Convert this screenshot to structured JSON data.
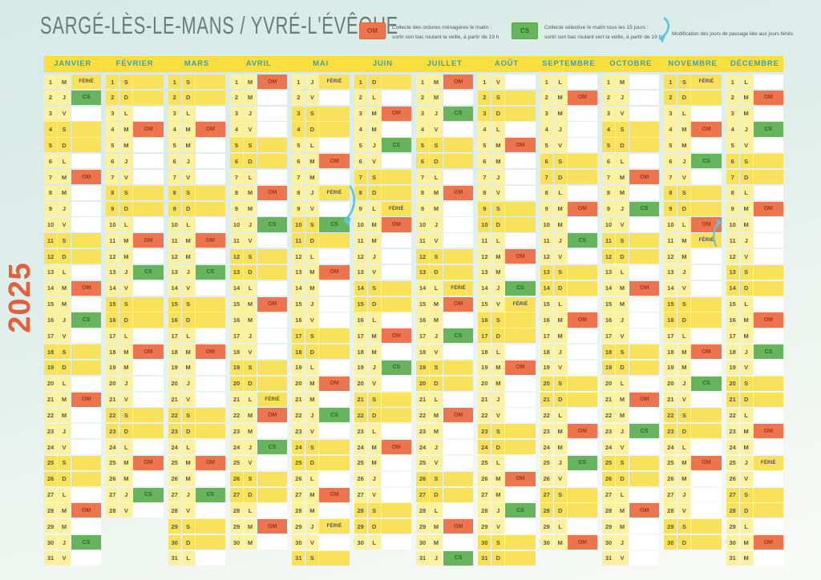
{
  "page_title": "SARGÉ-LÈS-LE-MANS / YVRÉ-L'ÉVÊQUE",
  "year": "2025",
  "holiday_label": "FÉRIÉ",
  "legend": {
    "om": {
      "label": "OM",
      "line1": "Collecte des ordures ménagères le matin :",
      "line2": "sortir son bac roulant la veille, à partir de 19 h"
    },
    "cs": {
      "label": "CS",
      "line1": "Collecte sélective le matin tous les 15 jours :",
      "line2": "sortir son bac roulant vert la veille, à partir de 19 h"
    },
    "note": "Modification des jours de passage liée aux jours fériés"
  },
  "icons": {
    "legend_arrow": "curved-blue-arrow",
    "may_shift_arrow": "curved-blue-arrow-may8-to-may10",
    "nov_shift_arrow": "curved-blue-arrow-nov11-to-nov10"
  },
  "colors": {
    "band_yellow": "#fbdf3f",
    "weekday_cell": "#fcf19e",
    "weekend_cell": "#f8e25c",
    "om_orange": "#ec7550",
    "cs_green": "#68b45e",
    "month_name_teal": "#3d9fb0",
    "year_orange": "#e2603c",
    "arrow_blue": "#5ec4e2",
    "title_gray": "#6b7b77"
  },
  "months": [
    {
      "name": "JANVIER",
      "weekdays": "MJVSDLMMJVSDLMMJVSDLMMJVSDLMMJV",
      "markers": {
        "1": "FERIE",
        "2": "CS",
        "7": "OM",
        "14": "OM",
        "16": "CS",
        "21": "OM",
        "28": "OM",
        "30": "CS"
      }
    },
    {
      "name": "FÉVRIER",
      "weekdays": "SDLMMJVSDLMMJVSDLMMJVSDLMMJV",
      "markers": {
        "4": "OM",
        "11": "OM",
        "13": "CS",
        "18": "OM",
        "25": "OM",
        "27": "CS"
      }
    },
    {
      "name": "MARS",
      "weekdays": "SDLMMJVSDLMMJVSDLMMJVSDLMMJVSDL",
      "markers": {
        "4": "OM",
        "11": "OM",
        "13": "CS",
        "18": "OM",
        "25": "OM",
        "27": "CS"
      }
    },
    {
      "name": "AVRIL",
      "weekdays": "MMJVSDLMMJVSDLMMJVSDLMMJVSDLMM",
      "markers": {
        "1": "OM",
        "8": "OM",
        "10": "CS",
        "15": "OM",
        "21": "FERIE",
        "22": "OM",
        "24": "CS",
        "29": "OM"
      }
    },
    {
      "name": "MAI",
      "weekdays": "JVSDLMMJVSDLMMJVSDLMMJVSDLMMJVS",
      "markers": {
        "1": "FERIE",
        "6": "OM",
        "8": "FERIE",
        "10": "CS",
        "13": "OM",
        "20": "OM",
        "22": "CS",
        "27": "OM",
        "29": "FERIE"
      }
    },
    {
      "name": "JUIN",
      "weekdays": "DLMMJVSDLMMJVSDLMMJVSDLMMJVSDL",
      "markers": {
        "3": "OM",
        "5": "CS",
        "9": "FERIE",
        "10": "OM",
        "17": "OM",
        "19": "CS",
        "24": "OM"
      }
    },
    {
      "name": "JUILLET",
      "weekdays": "MMJVSDLMMJVSDLMMJVSDLMMJVSDLMMJ",
      "markers": {
        "1": "OM",
        "3": "CS",
        "8": "OM",
        "14": "FERIE",
        "15": "OM",
        "17": "CS",
        "22": "OM",
        "29": "OM",
        "31": "CS"
      }
    },
    {
      "name": "AOÛT",
      "weekdays": "VSDLMMJVSDLMMJVSDLMMJVSDLMMJVSD",
      "markers": {
        "5": "OM",
        "12": "OM",
        "14": "CS",
        "15": "FERIE",
        "19": "OM",
        "26": "OM",
        "28": "CS"
      }
    },
    {
      "name": "SEPTEMBRE",
      "weekdays": "LMMJVSDLMMJVSDLMMJVSDLMMJVSDLM",
      "markers": {
        "2": "OM",
        "9": "OM",
        "11": "CS",
        "16": "OM",
        "23": "OM",
        "25": "CS",
        "30": "OM"
      }
    },
    {
      "name": "OCTOBRE",
      "weekdays": "MJVSDLMMJVSDLMMJVSDLMMJVSDLMMJV",
      "markers": {
        "7": "OM",
        "9": "CS",
        "14": "OM",
        "21": "OM",
        "23": "CS",
        "28": "OM"
      }
    },
    {
      "name": "NOVEMBRE",
      "weekdays": "SDLMMJVSDLMMJVSDLMMJVSDLMMJVSD",
      "markers": {
        "1": "FERIE",
        "4": "OM",
        "6": "CS",
        "10": "OM",
        "11": "FERIE",
        "18": "OM",
        "20": "CS",
        "25": "OM"
      }
    },
    {
      "name": "DÉCEMBRE",
      "weekdays": "LMMJVSDLMMJVSDLMMJVSDLMMJVSDLMM",
      "markers": {
        "2": "OM",
        "4": "CS",
        "9": "OM",
        "16": "OM",
        "18": "CS",
        "23": "OM",
        "25": "FERIE",
        "30": "OM"
      }
    }
  ]
}
